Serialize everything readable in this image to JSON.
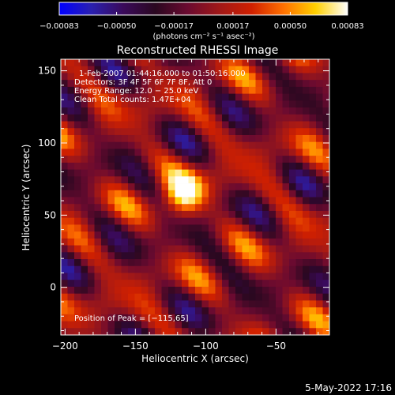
{
  "chart_data": {
    "type": "heatmap",
    "title": "Reconstructed RHESSI Image",
    "xlabel": "Heliocentric X (arcsec)",
    "ylabel": "Heliocentric Y (arcsec)",
    "xlim": [
      -203,
      -12
    ],
    "ylim": [
      -33,
      158
    ],
    "xticks": [
      -200,
      -150,
      -100,
      -50
    ],
    "xtick_labels": [
      "−200",
      "−150",
      "−100",
      "−50"
    ],
    "yticks": [
      0,
      50,
      100,
      150
    ],
    "ytick_labels": [
      "0",
      "50",
      "100",
      "150"
    ],
    "colorbar": {
      "range": [
        -0.00083,
        0.00083
      ],
      "ticks": [
        -0.00083,
        -0.0005,
        -0.00017,
        0.00017,
        0.0005,
        0.00083
      ],
      "tick_labels": [
        "−0.00083",
        "−0.00050",
        "−0.00017",
        "0.00017",
        "0.00050",
        "0.00083"
      ],
      "unit_label": "(photons cm⁻² s⁻¹ asec⁻²)",
      "colormap": [
        "#0000ff",
        "#2a20b0",
        "#3a0a5a",
        "#2a0820",
        "#6a0a30",
        "#a01818",
        "#d02000",
        "#ff7000",
        "#ffd000",
        "#ffffff"
      ]
    },
    "annotations": [
      "1-Feb-2007 01:44:16.000 to 01:50:16.000",
      "Detectors: 3F 4F 5F 6F 7F 8F, Att 0",
      "Energy Range: 12.0 − 25.0 keV",
      "Clean     Total counts: 1.47E+04"
    ],
    "peak_label": "Position of Peak = [−115,65]",
    "peak_position": [
      -115,
      65
    ],
    "grid_cells": 40
  },
  "footer": {
    "timestamp": "5-May-2022 17:16"
  }
}
